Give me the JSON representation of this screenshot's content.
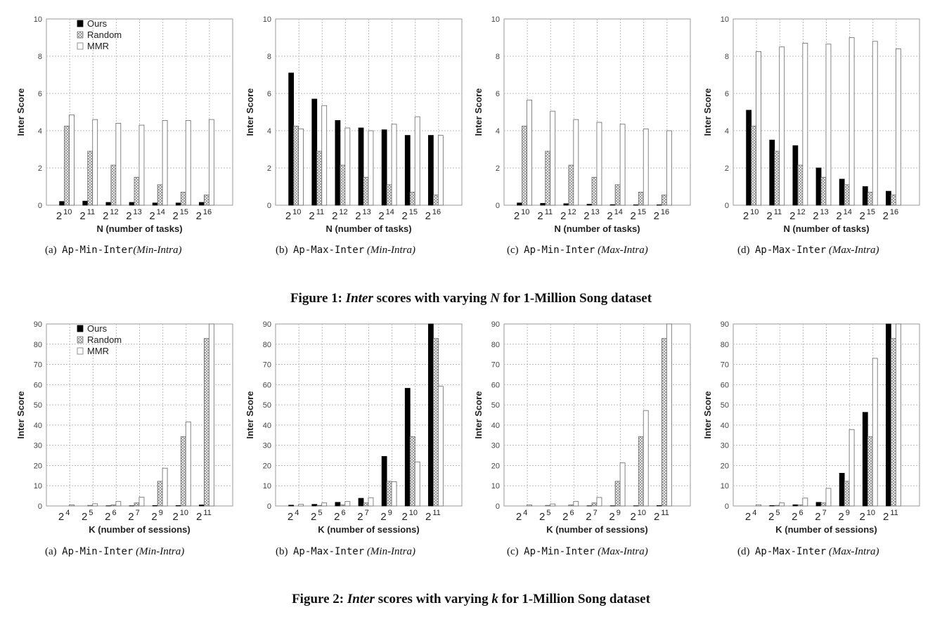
{
  "figures": [
    {
      "title_prefix": "Figure 1: ",
      "title_em": "Inter",
      "title_mid": " scores with varying ",
      "title_var": "N",
      "title_suffix": " for 1-Million Song dataset"
    },
    {
      "title_prefix": "Figure 2: ",
      "title_em": "Inter",
      "title_mid": " scores with varying ",
      "title_var": "k",
      "title_suffix": " for 1-Million Song dataset"
    }
  ],
  "chart_data": [
    {
      "type": "bar",
      "figure": 1,
      "caption_label": "(a)",
      "caption_method": "Ap-Min-Inter",
      "caption_variant": "(Min-Intra)",
      "xlabel": "N (number of tasks)",
      "ylabel": "Inter Score",
      "ylim": [
        0,
        10
      ],
      "yticks": [
        0,
        2,
        4,
        6,
        8,
        10
      ],
      "grid": true,
      "legend": "top-left",
      "categories": [
        {
          "base": "2",
          "exp": "10"
        },
        {
          "base": "2",
          "exp": "11"
        },
        {
          "base": "2",
          "exp": "12"
        },
        {
          "base": "2",
          "exp": "13"
        },
        {
          "base": "2",
          "exp": "14"
        },
        {
          "base": "2",
          "exp": "15"
        },
        {
          "base": "2",
          "exp": "16"
        }
      ],
      "series": [
        {
          "name": "Ours",
          "values": [
            0.2,
            0.22,
            0.15,
            0.15,
            0.12,
            0.12,
            0.15
          ]
        },
        {
          "name": "Random",
          "values": [
            4.25,
            2.9,
            2.15,
            1.5,
            1.1,
            0.7,
            0.55
          ]
        },
        {
          "name": "MMR",
          "values": [
            4.85,
            4.6,
            4.4,
            4.3,
            4.55,
            4.55,
            4.6
          ]
        }
      ]
    },
    {
      "type": "bar",
      "figure": 1,
      "caption_label": "(b)",
      "caption_method": "Ap-Max-Inter",
      "caption_variant": "(Min-Intra)",
      "xlabel": "N (number of tasks)",
      "ylabel": "Inter Score",
      "ylim": [
        0,
        10
      ],
      "yticks": [
        0,
        2,
        4,
        6,
        8,
        10
      ],
      "grid": true,
      "legend": "none",
      "categories": [
        {
          "base": "2",
          "exp": "10"
        },
        {
          "base": "2",
          "exp": "11"
        },
        {
          "base": "2",
          "exp": "12"
        },
        {
          "base": "2",
          "exp": "13"
        },
        {
          "base": "2",
          "exp": "14"
        },
        {
          "base": "2",
          "exp": "15"
        },
        {
          "base": "2",
          "exp": "16"
        }
      ],
      "series": [
        {
          "name": "Ours",
          "values": [
            7.1,
            5.7,
            4.55,
            4.15,
            4.05,
            3.75,
            3.75
          ]
        },
        {
          "name": "Random",
          "values": [
            4.25,
            2.9,
            2.15,
            1.5,
            1.1,
            0.7,
            0.55
          ]
        },
        {
          "name": "MMR",
          "values": [
            4.1,
            5.35,
            4.15,
            4.0,
            4.35,
            4.75,
            3.75
          ]
        }
      ]
    },
    {
      "type": "bar",
      "figure": 1,
      "caption_label": "(c)",
      "caption_method": "Ap-Min-Inter",
      "caption_variant": "(Max-Intra)",
      "xlabel": "N (number of tasks)",
      "ylabel": "Inter Score",
      "ylim": [
        0,
        10
      ],
      "yticks": [
        0,
        2,
        4,
        6,
        8,
        10
      ],
      "grid": true,
      "legend": "none",
      "categories": [
        {
          "base": "2",
          "exp": "10"
        },
        {
          "base": "2",
          "exp": "11"
        },
        {
          "base": "2",
          "exp": "12"
        },
        {
          "base": "2",
          "exp": "13"
        },
        {
          "base": "2",
          "exp": "14"
        },
        {
          "base": "2",
          "exp": "15"
        },
        {
          "base": "2",
          "exp": "16"
        }
      ],
      "series": [
        {
          "name": "Ours",
          "values": [
            0.12,
            0.1,
            0.08,
            0.05,
            0.03,
            0.02,
            0.02
          ]
        },
        {
          "name": "Random",
          "values": [
            4.25,
            2.9,
            2.15,
            1.5,
            1.1,
            0.7,
            0.55
          ]
        },
        {
          "name": "MMR",
          "values": [
            5.65,
            5.05,
            4.6,
            4.45,
            4.35,
            4.1,
            4.0
          ]
        }
      ]
    },
    {
      "type": "bar",
      "figure": 1,
      "caption_label": "(d)",
      "caption_method": "Ap-Max-Inter",
      "caption_variant": "(Max-Intra)",
      "xlabel": "N (number of tasks)",
      "ylabel": "Inter Score",
      "ylim": [
        0,
        10
      ],
      "yticks": [
        0,
        2,
        4,
        6,
        8,
        10
      ],
      "grid": true,
      "legend": "none",
      "categories": [
        {
          "base": "2",
          "exp": "10"
        },
        {
          "base": "2",
          "exp": "11"
        },
        {
          "base": "2",
          "exp": "12"
        },
        {
          "base": "2",
          "exp": "13"
        },
        {
          "base": "2",
          "exp": "14"
        },
        {
          "base": "2",
          "exp": "15"
        },
        {
          "base": "2",
          "exp": "16"
        }
      ],
      "series": [
        {
          "name": "Ours",
          "values": [
            5.1,
            3.5,
            3.2,
            2.0,
            1.4,
            1.0,
            0.75
          ]
        },
        {
          "name": "Random",
          "values": [
            4.25,
            2.9,
            2.15,
            1.5,
            1.1,
            0.7,
            0.55
          ]
        },
        {
          "name": "MMR",
          "values": [
            8.25,
            8.5,
            8.7,
            8.65,
            9.0,
            8.8,
            8.4
          ]
        }
      ]
    },
    {
      "type": "bar",
      "figure": 2,
      "caption_label": "(a)",
      "caption_method": "Ap-Min-Inter",
      "caption_variant": "(Min-Intra)",
      "xlabel": "K (number of sessions)",
      "ylabel": "Inter Score",
      "ylim": [
        0,
        90
      ],
      "yticks": [
        0,
        10,
        20,
        30,
        40,
        50,
        60,
        70,
        80,
        90
      ],
      "grid": true,
      "legend": "top-left",
      "categories": [
        {
          "base": "2",
          "exp": "4"
        },
        {
          "base": "2",
          "exp": "5"
        },
        {
          "base": "2",
          "exp": "6"
        },
        {
          "base": "2",
          "exp": "7"
        },
        {
          "base": "2",
          "exp": "9"
        },
        {
          "base": "2",
          "exp": "10"
        },
        {
          "base": "2",
          "exp": "11"
        }
      ],
      "series": [
        {
          "name": "Ours",
          "values": [
            0,
            0,
            0.1,
            0.1,
            0.2,
            0.2,
            0.5
          ]
        },
        {
          "name": "Random",
          "values": [
            0,
            0.3,
            0.5,
            1.5,
            12.2,
            34.3,
            82.8
          ]
        },
        {
          "name": "MMR",
          "values": [
            0.5,
            1.1,
            2.2,
            4.3,
            18.7,
            41.6,
            90
          ]
        }
      ]
    },
    {
      "type": "bar",
      "figure": 2,
      "caption_label": "(b)",
      "caption_method": "Ap-Max-Inter",
      "caption_variant": "(Min-Intra)",
      "xlabel": "K (number of sessions)",
      "ylabel": "Inter Score",
      "ylim": [
        0,
        90
      ],
      "yticks": [
        0,
        10,
        20,
        30,
        40,
        50,
        60,
        70,
        80,
        90
      ],
      "grid": true,
      "legend": "none",
      "categories": [
        {
          "base": "2",
          "exp": "4"
        },
        {
          "base": "2",
          "exp": "5"
        },
        {
          "base": "2",
          "exp": "6"
        },
        {
          "base": "2",
          "exp": "7"
        },
        {
          "base": "2",
          "exp": "9"
        },
        {
          "base": "2",
          "exp": "10"
        },
        {
          "base": "2",
          "exp": "11"
        }
      ],
      "series": [
        {
          "name": "Ours",
          "values": [
            0.4,
            0.8,
            1.8,
            3.8,
            24.5,
            58.2,
            90
          ]
        },
        {
          "name": "Random",
          "values": [
            0,
            0.3,
            0.5,
            1.5,
            12.2,
            34.3,
            82.8
          ]
        },
        {
          "name": "MMR",
          "values": [
            0.8,
            1.5,
            2.2,
            4.1,
            12,
            21.8,
            59.2
          ]
        }
      ]
    },
    {
      "type": "bar",
      "figure": 2,
      "caption_label": "(c)",
      "caption_method": "Ap-Min-Inter",
      "caption_variant": "(Max-Intra)",
      "xlabel": "K (number of sessions)",
      "ylabel": "Inter Score",
      "ylim": [
        0,
        90
      ],
      "yticks": [
        0,
        10,
        20,
        30,
        40,
        50,
        60,
        70,
        80,
        90
      ],
      "grid": true,
      "legend": "none",
      "categories": [
        {
          "base": "2",
          "exp": "4"
        },
        {
          "base": "2",
          "exp": "5"
        },
        {
          "base": "2",
          "exp": "6"
        },
        {
          "base": "2",
          "exp": "7"
        },
        {
          "base": "2",
          "exp": "9"
        },
        {
          "base": "2",
          "exp": "10"
        },
        {
          "base": "2",
          "exp": "11"
        }
      ],
      "series": [
        {
          "name": "Ours",
          "values": [
            0,
            0,
            0,
            0.1,
            0.1,
            0.1,
            0.2
          ]
        },
        {
          "name": "Random",
          "values": [
            0,
            0.3,
            0.5,
            1.5,
            12.2,
            34.3,
            82.8
          ]
        },
        {
          "name": "MMR",
          "values": [
            0.5,
            1.0,
            2.2,
            4.2,
            21.3,
            47.2,
            90
          ]
        }
      ]
    },
    {
      "type": "bar",
      "figure": 2,
      "caption_label": "(d)",
      "caption_method": "Ap-Max-Inter",
      "caption_variant": "(Max-Intra)",
      "xlabel": "K (number of sessions)",
      "ylabel": "Inter Score",
      "ylim": [
        0,
        90
      ],
      "yticks": [
        0,
        10,
        20,
        30,
        40,
        50,
        60,
        70,
        80,
        90
      ],
      "grid": true,
      "legend": "none",
      "categories": [
        {
          "base": "2",
          "exp": "4"
        },
        {
          "base": "2",
          "exp": "5"
        },
        {
          "base": "2",
          "exp": "6"
        },
        {
          "base": "2",
          "exp": "7"
        },
        {
          "base": "2",
          "exp": "9"
        },
        {
          "base": "2",
          "exp": "10"
        },
        {
          "base": "2",
          "exp": "11"
        }
      ],
      "series": [
        {
          "name": "Ours",
          "values": [
            0,
            0.2,
            0.6,
            1.8,
            16.2,
            46.3,
            90
          ]
        },
        {
          "name": "Random",
          "values": [
            0,
            0.3,
            0.5,
            1.5,
            12.2,
            34.3,
            82.8
          ]
        },
        {
          "name": "MMR",
          "values": [
            0.6,
            1.5,
            3.9,
            8.7,
            37.8,
            73,
            90
          ]
        }
      ]
    }
  ]
}
